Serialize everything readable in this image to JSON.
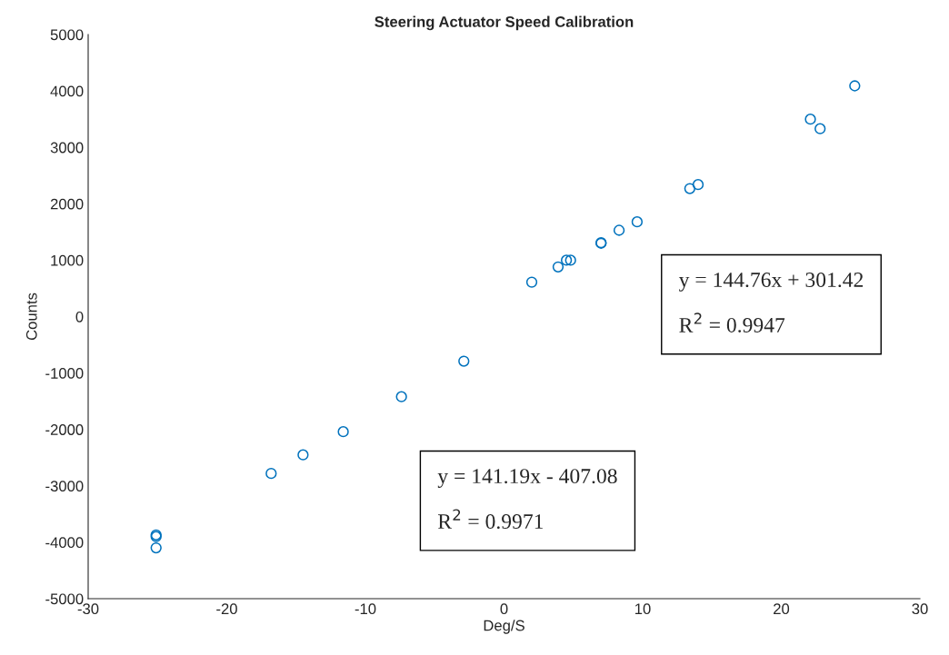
{
  "chart_data": {
    "type": "scatter",
    "title": "Steering Actuator Speed Calibration",
    "xlabel": "Deg/S",
    "ylabel": "Counts",
    "x": [
      -25.1,
      -25.1,
      -25.1,
      -16.8,
      -14.5,
      -11.6,
      -7.4,
      -2.9,
      2.0,
      3.9,
      4.5,
      4.8,
      7.0,
      7.0,
      8.3,
      9.6,
      13.4,
      14.0,
      22.1,
      22.8,
      25.3
    ],
    "series": [
      {
        "color": "#0072bd",
        "values": [
          -3870,
          -3900,
          -4100,
          -2780,
          -2450,
          -2040,
          -1420,
          -790,
          610,
          880,
          1000,
          1000,
          1300,
          1310,
          1530,
          1680,
          2270,
          2340,
          3500,
          3330,
          4090
        ]
      }
    ],
    "marker": "circle",
    "grid": false,
    "xlim": [
      -30,
      30
    ],
    "xticks": [
      -30,
      -20,
      -10,
      0,
      10,
      20,
      30
    ],
    "ylim": [
      -5000,
      5000
    ],
    "yticks": [
      -5000,
      -4000,
      -3000,
      -2000,
      -1000,
      0,
      1000,
      2000,
      3000,
      4000,
      5000
    ],
    "annotations": [
      "y = 144.76x + 301.42\n\nR$^{2}$ = 0.9947",
      "y = 141.19x - 407.08\n\nR$^{2}$ = 0.9971"
    ]
  }
}
